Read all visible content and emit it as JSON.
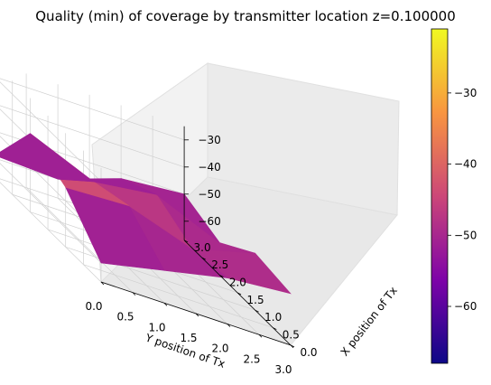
{
  "chart_data": {
    "type": "surface3d",
    "title": "Quality (min) of coverage by transmitter location z=0.100000",
    "xlabel": "Y position of Tx",
    "ylabel": "X position of Tx",
    "zlabel": "",
    "x_ticks": [
      "0.0",
      "0.5",
      "1.0",
      "1.5",
      "2.0",
      "2.5",
      "3.0"
    ],
    "y_ticks": [
      "0.0",
      "0.5",
      "1.0",
      "1.5",
      "2.0",
      "2.5",
      "3.0"
    ],
    "z_ticks": [
      "−30",
      "−40",
      "−50",
      "−60"
    ],
    "z_tick_values": [
      -30,
      -40,
      -50,
      -60
    ],
    "xlim": [
      0,
      3
    ],
    "ylim": [
      0,
      3
    ],
    "zlim": [
      -67,
      -25
    ],
    "x": [
      0,
      1,
      2,
      3
    ],
    "y": [
      0,
      1,
      2,
      3
    ],
    "z": [
      [
        -60,
        -45,
        -38,
        -59
      ],
      [
        -55,
        -44,
        -48,
        -60
      ],
      [
        -50,
        -52,
        -45,
        -52
      ],
      [
        -48,
        -46,
        -55,
        -50
      ]
    ],
    "colorbar": {
      "colormap": "plasma",
      "vmin": -68,
      "vmax": -21,
      "ticks": [
        "−30",
        "−40",
        "−50",
        "−60"
      ],
      "tick_values": [
        -30,
        -40,
        -50,
        -60
      ]
    },
    "grid": true
  }
}
